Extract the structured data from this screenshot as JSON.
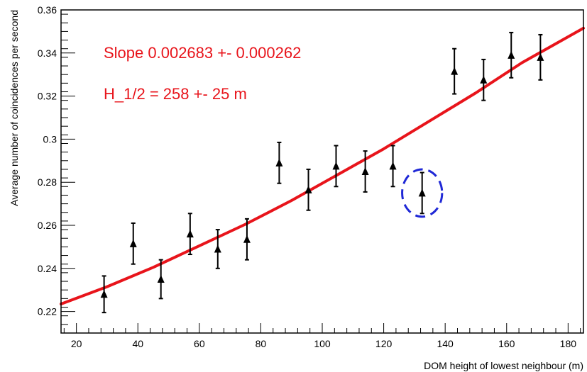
{
  "chart_data": {
    "type": "scatter",
    "title": "",
    "xlabel": "DOM height of lowest neighbour (m)",
    "ylabel": "Average number of coincidences per second",
    "xlim": [
      15,
      185
    ],
    "ylim": [
      0.21,
      0.36
    ],
    "x_ticks": [
      20,
      40,
      60,
      80,
      100,
      120,
      140,
      160,
      180
    ],
    "y_ticks": [
      0.22,
      0.24,
      0.26,
      0.28,
      0.3,
      0.32,
      0.34,
      0.36
    ],
    "x_tick_labels": [
      "20",
      "40",
      "60",
      "80",
      "100",
      "120",
      "140",
      "160",
      "180"
    ],
    "y_tick_labels": [
      "0.22",
      "0.24",
      "0.26",
      "0.28",
      "0.3",
      "0.32",
      "0.34",
      "0.36"
    ],
    "grid": false,
    "series": [
      {
        "marker": "triangle",
        "color": "#000000",
        "x": [
          29,
          38.5,
          47.5,
          57,
          66,
          75.5,
          86,
          95.5,
          104.5,
          114,
          123,
          132.5,
          143,
          152.5,
          161.5,
          171
        ],
        "y": [
          0.228,
          0.2515,
          0.235,
          0.256,
          0.249,
          0.2535,
          0.289,
          0.2765,
          0.2875,
          0.285,
          0.2875,
          0.275,
          0.3315,
          0.3275,
          0.339,
          0.338
        ],
        "yerr": [
          0.0085,
          0.0095,
          0.009,
          0.0095,
          0.009,
          0.0095,
          0.0095,
          0.0095,
          0.0095,
          0.0095,
          0.0095,
          0.0095,
          0.0105,
          0.0095,
          0.0105,
          0.0105
        ]
      }
    ],
    "fit": {
      "color": "#e8141b",
      "x": [
        15,
        30,
        45,
        60,
        75,
        90,
        105,
        120,
        135,
        150,
        165,
        185
      ],
      "y": [
        0.2235,
        0.2315,
        0.2405,
        0.2505,
        0.2605,
        0.2715,
        0.2835,
        0.2955,
        0.3085,
        0.3215,
        0.3355,
        0.3515
      ]
    },
    "annotations": [
      {
        "text": "Slope 0.002683 +- 0.000262",
        "color": "#e8141b"
      },
      {
        "text": "H_1/2 = 258 +- 25 m",
        "color": "#e8141b"
      }
    ],
    "highlight": {
      "x": 132.5,
      "y": 0.275,
      "rx": 6.5,
      "ry": 0.011,
      "color": "#1f28d6",
      "style": "dashed"
    }
  }
}
